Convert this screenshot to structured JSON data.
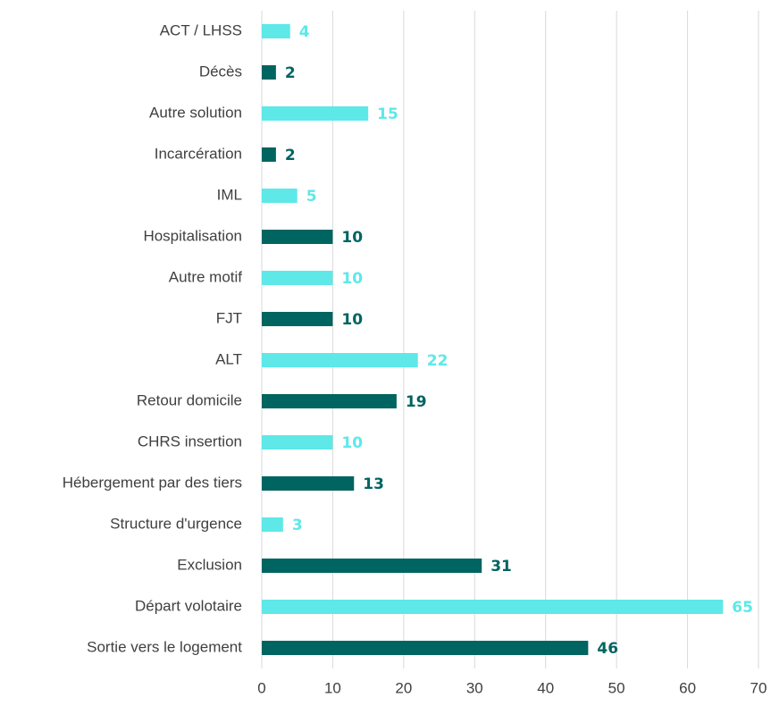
{
  "chart_data": {
    "type": "bar",
    "orientation": "horizontal",
    "categories": [
      "ACT / LHSS",
      "Décès",
      "Autre solution",
      "Incarcération",
      "IML",
      "Hospitalisation",
      "Autre motif",
      "FJT",
      "ALT",
      "Retour domicile",
      "CHRS insertion",
      "Hébergement par des tiers",
      "Structure d'urgence",
      "Exclusion",
      "Départ volotaire",
      "Sortie vers le logement"
    ],
    "values": [
      4,
      2,
      15,
      2,
      5,
      10,
      10,
      10,
      22,
      19,
      10,
      13,
      3,
      31,
      65,
      46
    ],
    "colors": [
      "#5ee8e8",
      "#006461",
      "#5ee8e8",
      "#006461",
      "#5ee8e8",
      "#006461",
      "#5ee8e8",
      "#006461",
      "#5ee8e8",
      "#006461",
      "#5ee8e8",
      "#006461",
      "#5ee8e8",
      "#006461",
      "#5ee8e8",
      "#006461"
    ],
    "xlim": [
      0,
      70
    ],
    "xticks": [
      0,
      10,
      20,
      30,
      40,
      50,
      60,
      70
    ],
    "grid": true
  }
}
